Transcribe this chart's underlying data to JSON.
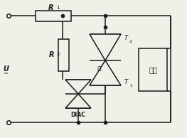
{
  "bg_color": "#f0efe8",
  "line_color": "#1a1a1a",
  "line_width": 1.1,
  "fig_width": 2.63,
  "fig_height": 1.94,
  "dpi": 100,
  "labels": {
    "R1_text": "R",
    "R1_sub": "1",
    "R2_text": "R",
    "R2_sub": "2",
    "U_text": "U",
    "DIAC_text": "DIAC",
    "G_text": "G",
    "T1_text": "T",
    "T1_sub": "1",
    "T2_text": "T",
    "T2_sub": "2",
    "load_text": "负载"
  }
}
